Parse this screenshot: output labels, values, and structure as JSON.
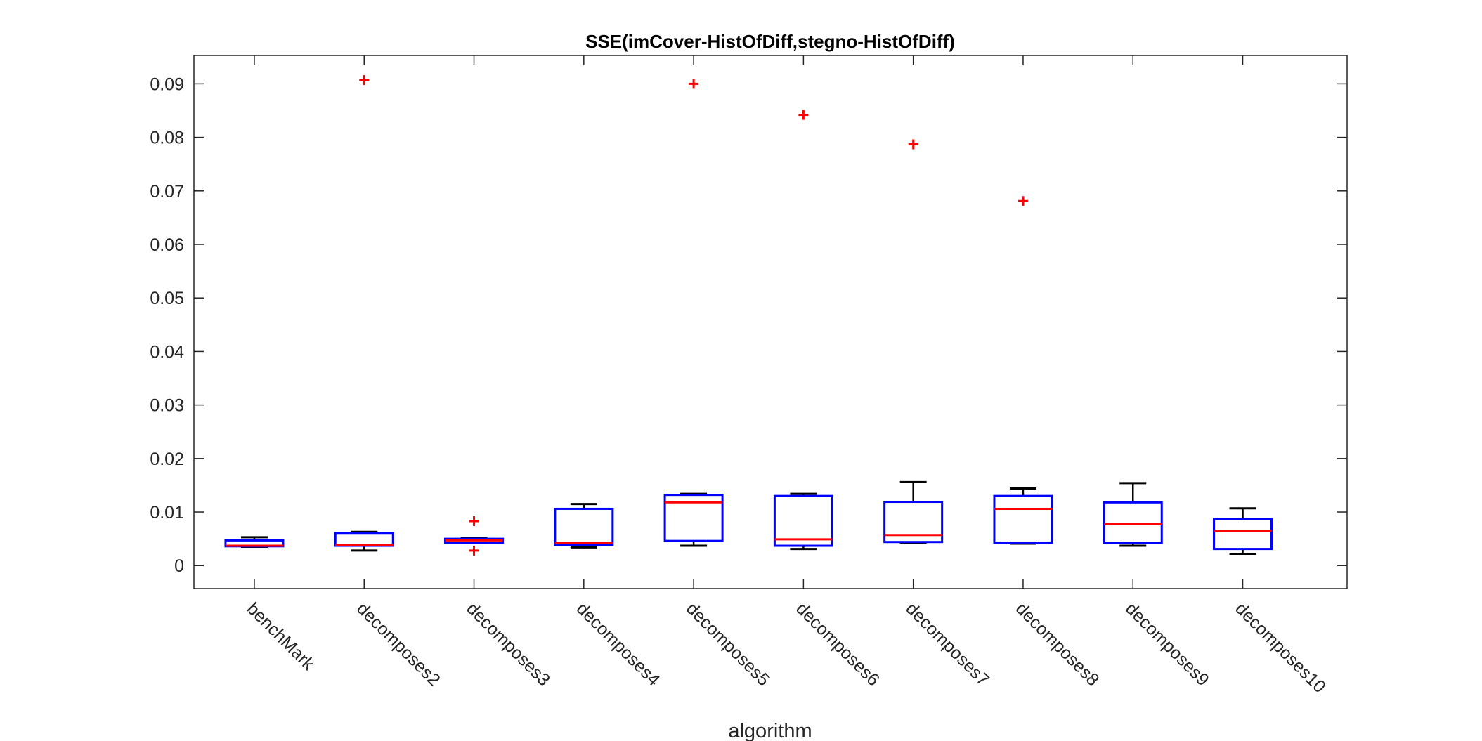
{
  "chart_data": {
    "type": "box",
    "title": "SSE(imCover-HistOfDiff,stegno-HistOfDiff)",
    "xlabel": "algorithm",
    "ylabel": "",
    "ylim": [
      -0.0043,
      0.0953
    ],
    "yticks": [
      0,
      0.01,
      0.02,
      0.03,
      0.04,
      0.05,
      0.06,
      0.07,
      0.08,
      0.09
    ],
    "ytick_labels": [
      "0",
      "0.01",
      "0.02",
      "0.03",
      "0.04",
      "0.05",
      "0.06",
      "0.07",
      "0.08",
      "0.09"
    ],
    "grid": false,
    "colors": {
      "box": "#0000ff",
      "median": "#ff0000",
      "whisker": "#000000",
      "outlier": "#ff0000",
      "axis": "#262626"
    },
    "categories": [
      "benchMark",
      "decomposes2",
      "decomposes3",
      "decomposes4",
      "decomposes5",
      "decomposes6",
      "decomposes7",
      "decomposes8",
      "decomposes9",
      "decomposes10"
    ],
    "boxes": [
      {
        "whisker_low": 0.0035,
        "q1": 0.0036,
        "median": 0.0037,
        "q3": 0.0047,
        "whisker_high": 0.0053,
        "outliers": []
      },
      {
        "whisker_low": 0.0028,
        "q1": 0.0037,
        "median": 0.0039,
        "q3": 0.0061,
        "whisker_high": 0.0063,
        "outliers": [
          0.0907
        ]
      },
      {
        "whisker_low": 0.0043,
        "q1": 0.0043,
        "median": 0.0047,
        "q3": 0.005,
        "whisker_high": 0.0051,
        "outliers": [
          0.0083,
          0.0028
        ]
      },
      {
        "whisker_low": 0.0034,
        "q1": 0.0038,
        "median": 0.0043,
        "q3": 0.0106,
        "whisker_high": 0.0115,
        "outliers": []
      },
      {
        "whisker_low": 0.0037,
        "q1": 0.0046,
        "median": 0.0118,
        "q3": 0.0132,
        "whisker_high": 0.0134,
        "outliers": [
          0.09
        ]
      },
      {
        "whisker_low": 0.0031,
        "q1": 0.0037,
        "median": 0.0049,
        "q3": 0.013,
        "whisker_high": 0.0134,
        "outliers": [
          0.0842
        ]
      },
      {
        "whisker_low": 0.0043,
        "q1": 0.0044,
        "median": 0.0057,
        "q3": 0.0119,
        "whisker_high": 0.0156,
        "outliers": [
          0.0787
        ]
      },
      {
        "whisker_low": 0.0041,
        "q1": 0.0043,
        "median": 0.0106,
        "q3": 0.013,
        "whisker_high": 0.0144,
        "outliers": [
          0.0681
        ]
      },
      {
        "whisker_low": 0.0037,
        "q1": 0.0042,
        "median": 0.0077,
        "q3": 0.0118,
        "whisker_high": 0.0154,
        "outliers": []
      },
      {
        "whisker_low": 0.0022,
        "q1": 0.0031,
        "median": 0.0065,
        "q3": 0.0087,
        "whisker_high": 0.0107,
        "outliers": []
      }
    ]
  }
}
